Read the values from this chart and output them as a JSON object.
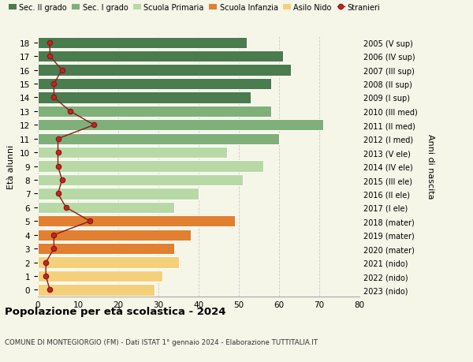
{
  "ages": [
    18,
    17,
    16,
    15,
    14,
    13,
    12,
    11,
    10,
    9,
    8,
    7,
    6,
    5,
    4,
    3,
    2,
    1,
    0
  ],
  "bar_values": [
    52,
    61,
    63,
    58,
    53,
    58,
    71,
    60,
    47,
    56,
    51,
    40,
    34,
    49,
    38,
    34,
    35,
    31,
    29
  ],
  "bar_colors": [
    "#4a7c4e",
    "#4a7c4e",
    "#4a7c4e",
    "#4a7c4e",
    "#4a7c4e",
    "#7fb07a",
    "#7fb07a",
    "#7fb07a",
    "#b8d9a6",
    "#b8d9a6",
    "#b8d9a6",
    "#b8d9a6",
    "#b8d9a6",
    "#e08030",
    "#e08030",
    "#e08030",
    "#f5d07a",
    "#f5d07a",
    "#f5d07a"
  ],
  "stranieri_values": [
    3,
    3,
    6,
    4,
    4,
    8,
    14,
    5,
    5,
    5,
    6,
    5,
    7,
    13,
    4,
    4,
    2,
    2,
    3
  ],
  "right_labels": [
    "2005 (V sup)",
    "2006 (IV sup)",
    "2007 (III sup)",
    "2008 (II sup)",
    "2009 (I sup)",
    "2010 (III med)",
    "2011 (II med)",
    "2012 (I med)",
    "2013 (V ele)",
    "2014 (IV ele)",
    "2015 (III ele)",
    "2016 (II ele)",
    "2017 (I ele)",
    "2018 (mater)",
    "2019 (mater)",
    "2020 (mater)",
    "2021 (nido)",
    "2022 (nido)",
    "2023 (nido)"
  ],
  "legend_labels": [
    "Sec. II grado",
    "Sec. I grado",
    "Scuola Primaria",
    "Scuola Infanzia",
    "Asilo Nido",
    "Stranieri"
  ],
  "legend_colors": [
    "#4a7c4e",
    "#7fb07a",
    "#b8d9a6",
    "#e08030",
    "#f5d07a",
    "#b22222"
  ],
  "ylabel_left": "Età alunni",
  "ylabel_right": "Anni di nascita",
  "title": "Popolazione per età scolastica - 2024",
  "subtitle": "COMUNE DI MONTEGIORGIO (FM) - Dati ISTAT 1° gennaio 2024 - Elaborazione TUTTITALIA.IT",
  "xlim": [
    0,
    80
  ],
  "xticks": [
    0,
    10,
    20,
    30,
    40,
    50,
    60,
    70,
    80
  ],
  "background_color": "#f5f5e8"
}
